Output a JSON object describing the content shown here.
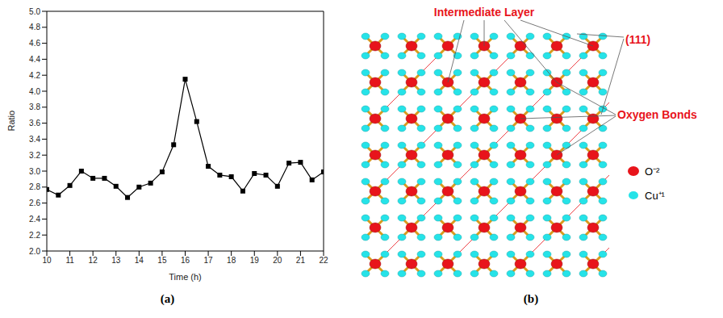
{
  "chart_data": {
    "type": "line",
    "x": [
      10,
      10.5,
      11,
      11.5,
      12,
      12.5,
      13,
      13.5,
      14,
      14.5,
      15,
      15.5,
      16,
      16.5,
      17,
      17.5,
      18,
      18.5,
      19,
      19.5,
      20,
      20.5,
      21,
      21.5,
      22
    ],
    "values": [
      2.77,
      2.7,
      2.82,
      3.0,
      2.91,
      2.91,
      2.81,
      2.67,
      2.8,
      2.85,
      2.99,
      3.33,
      4.15,
      3.62,
      3.06,
      2.95,
      2.93,
      2.75,
      2.97,
      2.95,
      2.81,
      3.1,
      3.11,
      2.89,
      2.99
    ],
    "color": "#000000",
    "marker": "square",
    "x_label": "Time (h)",
    "y_label": "Ratio",
    "xlim": [
      10,
      22
    ],
    "xticks": [
      10,
      11,
      12,
      13,
      14,
      15,
      16,
      17,
      18,
      19,
      20,
      21,
      22
    ],
    "ylim": [
      2,
      5
    ],
    "yticks": [
      {
        "value": 2,
        "label": "2.0"
      },
      {
        "value": 2.2,
        "label": "2.2"
      },
      {
        "value": 2.4,
        "label": "2.4"
      },
      {
        "value": 2.6,
        "label": "2.6"
      },
      {
        "value": 2.8,
        "label": "2.8"
      },
      {
        "value": 3,
        "label": "3.0"
      },
      {
        "value": 3.2,
        "label": "3.2"
      },
      {
        "value": 3.4,
        "label": "3.4"
      },
      {
        "value": 3.6,
        "label": "3.6"
      },
      {
        "value": 3.8,
        "label": "3.8"
      },
      {
        "value": 4,
        "label": "4.0"
      },
      {
        "value": 4.2,
        "label": "4.2"
      },
      {
        "value": 4.4,
        "label": "4.4"
      },
      {
        "value": 4.6,
        "label": "4.6"
      },
      {
        "value": 4.8,
        "label": "4.8"
      },
      {
        "value": 5,
        "label": "5.0"
      }
    ],
    "grid": false
  },
  "panel_labels": [
    "(a)",
    "(b)"
  ],
  "diagram": {
    "labels": {
      "intermediate_layer": "Intermediate Layer",
      "plane": "(111)",
      "oxygen_bonds": "Oxygen Bonds"
    },
    "legend": [
      {
        "label": "O⁻²",
        "color": "#e8141b"
      },
      {
        "label": "Cu⁺¹",
        "color": "#25e3e8"
      }
    ]
  }
}
